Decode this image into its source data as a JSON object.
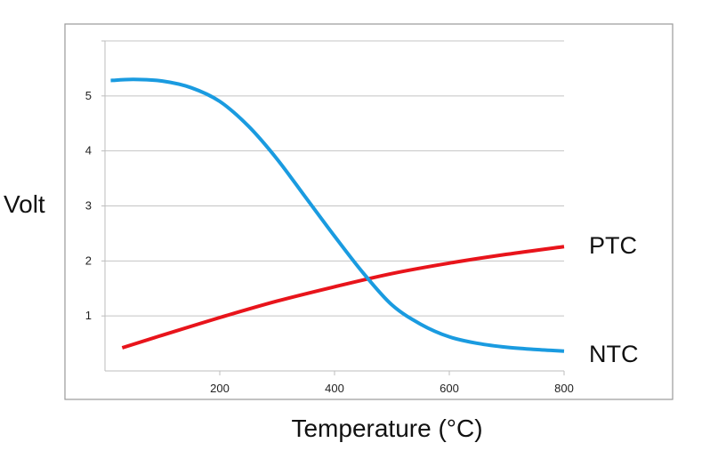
{
  "chart_data": {
    "type": "line",
    "title": "",
    "xlabel": "Temperature (°C)",
    "ylabel": "Volt",
    "xlim": [
      0,
      800
    ],
    "ylim": [
      0,
      6
    ],
    "x_ticks": [
      200,
      400,
      600,
      800
    ],
    "y_ticks": [
      1,
      2,
      3,
      4,
      5
    ],
    "grid": "horizontal",
    "legend": "none",
    "series": [
      {
        "name": "PTC",
        "color": "#e8141b",
        "x": [
          30,
          100,
          200,
          300,
          400,
          500,
          600,
          700,
          800
        ],
        "y": [
          0.42,
          0.65,
          0.97,
          1.27,
          1.53,
          1.77,
          1.96,
          2.12,
          2.26
        ]
      },
      {
        "name": "NTC",
        "color": "#1a9be0",
        "x": [
          10,
          50,
          100,
          150,
          200,
          250,
          300,
          350,
          400,
          450,
          500,
          550,
          600,
          650,
          700,
          750,
          800
        ],
        "y": [
          5.28,
          5.3,
          5.27,
          5.15,
          4.9,
          4.45,
          3.85,
          3.15,
          2.45,
          1.78,
          1.2,
          0.85,
          0.62,
          0.5,
          0.43,
          0.39,
          0.36
        ]
      }
    ]
  }
}
